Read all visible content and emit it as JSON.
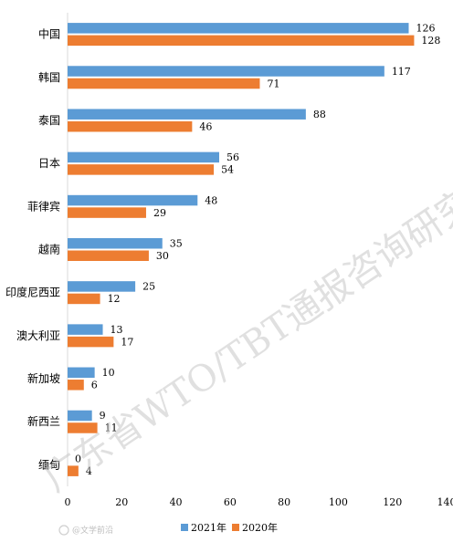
{
  "chart_data": {
    "type": "bar",
    "orientation": "horizontal",
    "categories": [
      "中国",
      "韩国",
      "泰国",
      "日本",
      "菲律宾",
      "越南",
      "印度尼西亚",
      "澳大利亚",
      "新加坡",
      "新西兰",
      "缅甸"
    ],
    "series": [
      {
        "name": "2021年",
        "color": "#5b9bd5",
        "values": [
          126,
          117,
          88,
          56,
          48,
          35,
          25,
          13,
          10,
          9,
          0
        ]
      },
      {
        "name": "2020年",
        "color": "#ed7d31",
        "values": [
          128,
          71,
          46,
          54,
          29,
          30,
          12,
          17,
          6,
          11,
          4
        ]
      }
    ],
    "xlim": [
      0,
      140
    ],
    "xticks": [
      "0",
      "20",
      "40",
      "60",
      "80",
      "100",
      "120",
      "140"
    ],
    "grid": false,
    "legend_position": "bottom",
    "title": "",
    "xlabel": "",
    "ylabel": ""
  },
  "watermark": "广东省WTO/TBT通报咨询研究中心",
  "credit": "@文学前沿"
}
